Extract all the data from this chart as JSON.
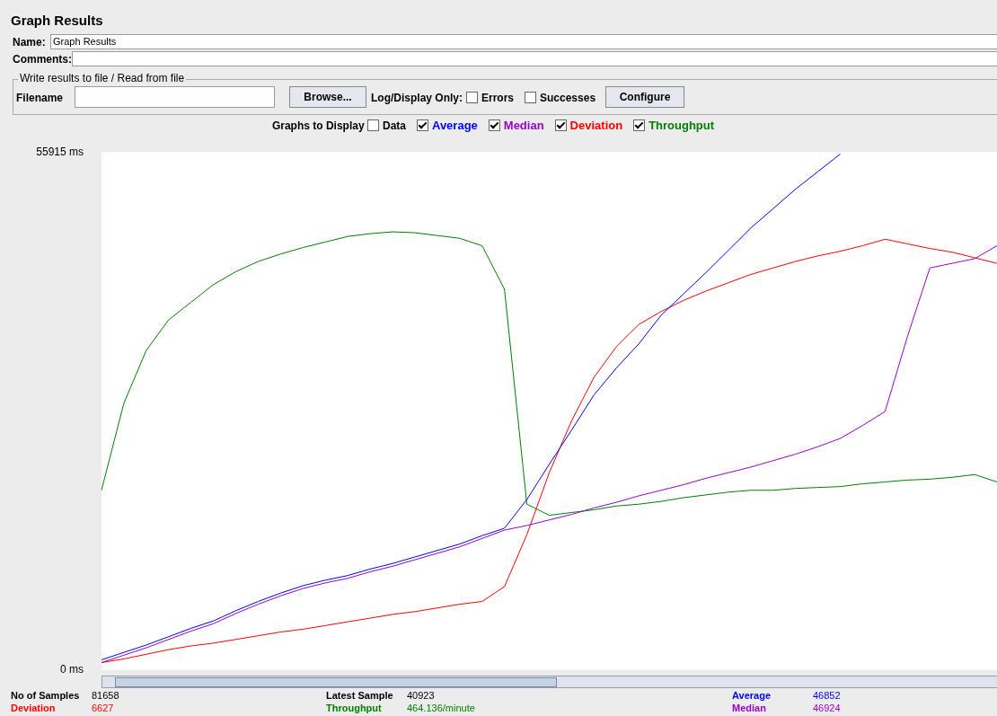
{
  "chart_data": {
    "type": "line",
    "title": "Graph Results",
    "legend_title": "Graphs to Display",
    "legend": "top",
    "grid": false,
    "marker": "none",
    "line_style": "solid",
    "categories": [
      null,
      null,
      null,
      null,
      null,
      null,
      null,
      null,
      null,
      null,
      null,
      null,
      null,
      null,
      null,
      null,
      null,
      null,
      null,
      null,
      null,
      null,
      null,
      null,
      null,
      null,
      null,
      null,
      null,
      null,
      null,
      null,
      null,
      null,
      null,
      null,
      null,
      null,
      null,
      null,
      null
    ],
    "ylim": [
      0,
      55915
    ],
    "yticks": [
      {
        "value": 55915,
        "label": "55915 ms"
      },
      {
        "value": 0,
        "label": "0 ms"
      }
    ],
    "series": [
      {
        "name": "Average",
        "color": "#0000ff",
        "values": [
          1100,
          1900,
          2700,
          3600,
          4500,
          5300,
          6400,
          7400,
          8300,
          9100,
          9700,
          10200,
          10900,
          11500,
          12200,
          12900,
          13600,
          14500,
          15300,
          18400,
          22200,
          25900,
          29700,
          32600,
          35200,
          38300,
          40600,
          42900,
          45300,
          47700,
          49800,
          51900,
          53800,
          55700,
          null,
          null,
          null,
          null,
          null,
          null,
          null
        ]
      },
      {
        "name": "Median",
        "color": "#9900cc",
        "values": [
          800,
          1600,
          2400,
          3300,
          4200,
          5000,
          6100,
          7100,
          8000,
          8800,
          9400,
          9900,
          10600,
          11200,
          11900,
          12600,
          13300,
          14200,
          15100,
          15600,
          16200,
          16800,
          17500,
          18100,
          18800,
          19400,
          20000,
          20700,
          21300,
          21900,
          22600,
          23300,
          24100,
          25000,
          26400,
          27900,
          36000,
          43400,
          43900,
          44400,
          45800
        ]
      },
      {
        "name": "Deviation",
        "color": "#ff0000",
        "values": [
          800,
          1200,
          1700,
          2200,
          2600,
          2900,
          3300,
          3700,
          4100,
          4400,
          4800,
          5200,
          5600,
          6000,
          6300,
          6700,
          7100,
          7400,
          9000,
          14600,
          21300,
          26900,
          31600,
          34900,
          37300,
          38700,
          39900,
          40900,
          41800,
          42700,
          43400,
          44100,
          44700,
          45200,
          45800,
          46500,
          46000,
          45500,
          45100,
          44500,
          43900
        ]
      },
      {
        "name": "Throughput",
        "color": "#008000",
        "values": [
          19400,
          28800,
          34500,
          37800,
          39700,
          41600,
          43000,
          44100,
          44900,
          45600,
          46200,
          46800,
          47100,
          47300,
          47200,
          46900,
          46600,
          45800,
          41100,
          17900,
          16700,
          17000,
          17300,
          17700,
          17900,
          18200,
          18600,
          18900,
          19200,
          19400,
          19400,
          19600,
          19700,
          19800,
          20100,
          20300,
          20500,
          20600,
          20800,
          21100,
          20300
        ]
      }
    ],
    "annotations": [
      "Name:",
      "Graph Results",
      "Comments:",
      "Write results to file / Read from file",
      "Filename",
      "Browse...",
      "Log/Display Only:",
      "Errors",
      "Successes",
      "Configure",
      "Data",
      "No of Samples",
      "81658",
      "Deviation",
      "6627",
      "Latest Sample",
      "40923",
      "Throughput",
      "464.136/minute",
      "Average",
      "46852",
      "Median",
      "46924"
    ]
  }
}
